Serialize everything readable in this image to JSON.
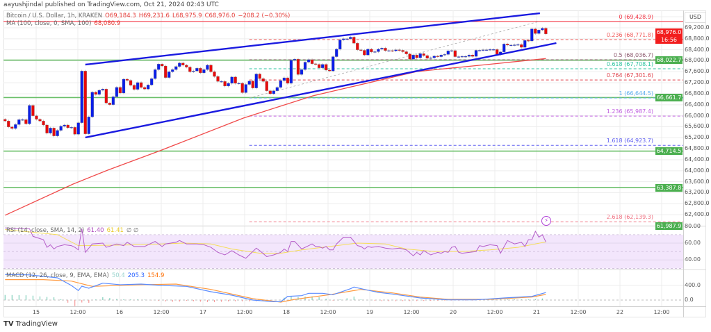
{
  "publisher_line": "aayushjindal published on TradingView.com, Oct 21, 2024 02:43 UTC",
  "legend": {
    "symbol": "Bitcoin / U.S. Dollar, 1h, KRAKEN",
    "open": "O69,184.3",
    "high": "H69,231.6",
    "low": "L68,975.9",
    "close": "C68,976.0",
    "change": "−208.2 (−0.30%)",
    "ma_label": "MA (100, close, 0, SMA, 100)",
    "ma_value": "68,080.9"
  },
  "rsi_legend": {
    "label": "RSI (14, close, SMA, 14, 2)",
    "rsi": "61.40",
    "sma": "61.41",
    "extra": "∅ ∅"
  },
  "macd_legend": {
    "label": "MACD (12, 26, close, 9, EMA, EMA)",
    "hist": "50.4",
    "macd": "205.3",
    "signal": "154.9"
  },
  "currency": "USD",
  "price_axis": [
    "69,200.0",
    "68,800.0",
    "68,400.0",
    "68,000.0",
    "67,600.0",
    "67,200.0",
    "66,800.0",
    "66,400.0",
    "66,000.0",
    "65,600.0",
    "65,200.0",
    "64,800.0",
    "64,400.0",
    "64,000.0",
    "63,600.0",
    "63,200.0",
    "62,800.0",
    "62,400.0"
  ],
  "rsi_axis": [
    "80.00",
    "60.00",
    "40.00"
  ],
  "macd_axis": [
    "400.0",
    "0.0"
  ],
  "time_axis": [
    "15",
    "12:00",
    "16",
    "12:00",
    "17",
    "12:00",
    "18",
    "12:00",
    "19",
    "12:00",
    "20",
    "12:00",
    "21",
    "12:00",
    "22",
    "12:00"
  ],
  "current_price": {
    "value": "68,976.0",
    "countdown": "16:56",
    "color": "#f21d1d"
  },
  "level_badges": [
    "68,022.7",
    "66,661.7",
    "64,714.5",
    "63,387.8",
    "61,987.9"
  ],
  "support_resistance_lines": [
    68022.7,
    66661.7,
    64714.5,
    63387.8
  ],
  "fib_levels": [
    {
      "label": "0 (69,428.9)",
      "price": 69428.9,
      "color": "#f23645"
    },
    {
      "label": "0.236 (68,771.8)",
      "price": 68771.8,
      "color": "#f05a5a"
    },
    {
      "label": "0.5 (68,036.7)",
      "price": 68036.7,
      "color": "#8d5a6e"
    },
    {
      "label": "0.618 (67,708.1)",
      "price": 67708.1,
      "color": "#2ec4a0"
    },
    {
      "label": "0.764 (67,301.6)",
      "price": 67301.6,
      "color": "#e0404a"
    },
    {
      "label": "1 (66,644.5)",
      "price": 66644.5,
      "color": "#5fb0f0"
    },
    {
      "label": "1.236 (65,987.4)",
      "price": 65987.4,
      "color": "#c060e0"
    },
    {
      "label": "1.618 (64,923.7)",
      "price": 64923.7,
      "color": "#6060f0"
    },
    {
      "label": "2.618 (62,139.3)",
      "price": 62139.3,
      "color": "#f07080"
    }
  ],
  "colors": {
    "up": "#0a1ee8",
    "down": "#e80a0a",
    "channel": "#1a1ae0",
    "ma": "#f04b4b",
    "level": "#6abf69",
    "rsi": "#b45cc8",
    "rsi_signal": "#f5dd5a",
    "macd": "#5b8cff",
    "signal": "#ff9a40",
    "hist_up": "#7ccdb8",
    "hist_down": "#f59a9a"
  },
  "chart_data": {
    "type": "candlestick",
    "timeframe": "1h",
    "closes": [
      65810,
      65595,
      65537,
      65681,
      65858,
      65858,
      65707,
      66378,
      66000,
      65873,
      65808,
      65664,
      65368,
      65555,
      65267,
      65469,
      65621,
      65664,
      65563,
      65580,
      65328,
      65747,
      67626,
      65343,
      65959,
      66858,
      66775,
      66927,
      66970,
      66464,
      66404,
      66692,
      67035,
      66826,
      67331,
      67288,
      67111,
      66960,
      67207,
      67030,
      66970,
      67120,
      67350,
      67680,
      67880,
      67810,
      67390,
      67600,
      67680,
      67790,
      67920,
      67840,
      67770,
      67600,
      67630,
      67730,
      67560,
      67680,
      67840,
      67600,
      67430,
      67250,
      67250,
      67080,
      67180,
      67410,
      67180,
      67180,
      66840,
      67140,
      67260,
      67010,
      67520,
      67350,
      67250,
      66910,
      66800,
      66910,
      67030,
      67280,
      67380,
      67180,
      68020,
      68060,
      67500,
      67680,
      67950,
      68040,
      67890,
      67870,
      67740,
      67870,
      67660,
      67630,
      68150,
      68420,
      68760,
      68800,
      68800,
      68860,
      68640,
      68400,
      68380,
      68210,
      68420,
      68320,
      68330,
      68420,
      68460,
      68370,
      68370,
      68360,
      68400,
      68380,
      68330,
      68250,
      68060,
      68210,
      68110,
      68260,
      68190,
      68090,
      68110,
      68170,
      68150,
      68210,
      68230,
      68360,
      68370,
      68150,
      68150,
      68160,
      68160,
      68210,
      68160,
      68380,
      68380,
      68400,
      68400,
      68410,
      68410,
      68230,
      68320,
      68610,
      68570,
      68570,
      68580,
      68590,
      68490,
      68740,
      68720,
      69160,
      68990,
      69120,
      69184.3,
      68976.0
    ],
    "ma100": [
      [
        0,
        62380
      ],
      [
        19.5,
        63516
      ],
      [
        29.4,
        64022
      ],
      [
        44.4,
        64729
      ],
      [
        68.3,
        65916
      ],
      [
        88.2,
        66725
      ],
      [
        118,
        67609
      ],
      [
        138,
        67861
      ],
      [
        155,
        68080.9
      ]
    ],
    "channel_upper": [
      [
        23,
        67861
      ],
      [
        153.3,
        69730
      ]
    ],
    "channel_lower": [
      [
        23,
        65209
      ],
      [
        158,
        68644
      ]
    ],
    "fib_anchor": [
      [
        70,
        66644.5
      ],
      [
        153,
        69428.9
      ]
    ],
    "rsi": [
      [
        0,
        78
      ],
      [
        7,
        77
      ],
      [
        8,
        68
      ],
      [
        11,
        64
      ],
      [
        12,
        55
      ],
      [
        13,
        58
      ],
      [
        14,
        53
      ],
      [
        15,
        56
      ],
      [
        17,
        58
      ],
      [
        19,
        57
      ],
      [
        20,
        55
      ],
      [
        21,
        52
      ],
      [
        22,
        77
      ],
      [
        23,
        49
      ],
      [
        25,
        59
      ],
      [
        28,
        60
      ],
      [
        29,
        55
      ],
      [
        32,
        59
      ],
      [
        34,
        57
      ],
      [
        35,
        61
      ],
      [
        37,
        56
      ],
      [
        40,
        56
      ],
      [
        43,
        62
      ],
      [
        45,
        56
      ],
      [
        46,
        59
      ],
      [
        49,
        61
      ],
      [
        50,
        63
      ],
      [
        52,
        59
      ],
      [
        55,
        59
      ],
      [
        57,
        58
      ],
      [
        59,
        55
      ],
      [
        61,
        49
      ],
      [
        63,
        46
      ],
      [
        65,
        51
      ],
      [
        67,
        46
      ],
      [
        69,
        42
      ],
      [
        70,
        46
      ],
      [
        72,
        54
      ],
      [
        73,
        51
      ],
      [
        75,
        44
      ],
      [
        77,
        46
      ],
      [
        79,
        49
      ],
      [
        80,
        53
      ],
      [
        81,
        50
      ],
      [
        82,
        62
      ],
      [
        83,
        62
      ],
      [
        85,
        53
      ],
      [
        87,
        57
      ],
      [
        88,
        59
      ],
      [
        89,
        56
      ],
      [
        90,
        56
      ],
      [
        91,
        54
      ],
      [
        92,
        56
      ],
      [
        93,
        52
      ],
      [
        94,
        52
      ],
      [
        95,
        59
      ],
      [
        97,
        67
      ],
      [
        99,
        67
      ],
      [
        101,
        57
      ],
      [
        102,
        56
      ],
      [
        103,
        53
      ],
      [
        104,
        56
      ],
      [
        105,
        55
      ],
      [
        107,
        56
      ],
      [
        109,
        54
      ],
      [
        111,
        53
      ],
      [
        113,
        54
      ],
      [
        115,
        52
      ],
      [
        117,
        45
      ],
      [
        118,
        49
      ],
      [
        119,
        46
      ],
      [
        120,
        51
      ],
      [
        122,
        46
      ],
      [
        124,
        49
      ],
      [
        125,
        48
      ],
      [
        126,
        50
      ],
      [
        127,
        49
      ],
      [
        128,
        55
      ],
      [
        129,
        56
      ],
      [
        130,
        49
      ],
      [
        131,
        48
      ],
      [
        133,
        49
      ],
      [
        135,
        50
      ],
      [
        136,
        57
      ],
      [
        137,
        56
      ],
      [
        139,
        58
      ],
      [
        141,
        57
      ],
      [
        142,
        48
      ],
      [
        144,
        63
      ],
      [
        146,
        59
      ],
      [
        148,
        61
      ],
      [
        149,
        56
      ],
      [
        150,
        64
      ],
      [
        151,
        64
      ],
      [
        152,
        74
      ],
      [
        153,
        67
      ],
      [
        154,
        70
      ],
      [
        155,
        61.4
      ]
    ],
    "rsi_sma": [
      [
        0,
        76
      ],
      [
        15,
        70
      ],
      [
        21,
        57
      ],
      [
        39,
        58
      ],
      [
        51,
        60
      ],
      [
        59,
        59
      ],
      [
        65,
        53
      ],
      [
        73,
        48
      ],
      [
        79,
        48
      ],
      [
        85,
        52
      ],
      [
        93,
        56
      ],
      [
        101,
        60
      ],
      [
        109,
        59
      ],
      [
        115,
        53
      ],
      [
        123,
        50
      ],
      [
        131,
        50
      ],
      [
        139,
        52
      ],
      [
        147,
        55
      ],
      [
        155,
        61.41
      ]
    ],
    "rsi_range": [
      0,
      100
    ],
    "rsi_band": [
      30,
      70
    ],
    "macd": [
      [
        0,
        700
      ],
      [
        7,
        690
      ],
      [
        15,
        610
      ],
      [
        19,
        400
      ],
      [
        21,
        260
      ],
      [
        22,
        380
      ],
      [
        24,
        324
      ],
      [
        28,
        463
      ],
      [
        33,
        420
      ],
      [
        39,
        438
      ],
      [
        45,
        400
      ],
      [
        52,
        375
      ],
      [
        59,
        229
      ],
      [
        65,
        133
      ],
      [
        71,
        0
      ],
      [
        77,
        -45
      ],
      [
        79,
        -45
      ],
      [
        81,
        100
      ],
      [
        85,
        120
      ],
      [
        87,
        185
      ],
      [
        91,
        185
      ],
      [
        94,
        147
      ],
      [
        99,
        310
      ],
      [
        100,
        356
      ],
      [
        103,
        292
      ],
      [
        107,
        210
      ],
      [
        111,
        165
      ],
      [
        119,
        57
      ],
      [
        127,
        6
      ],
      [
        135,
        6
      ],
      [
        143,
        57
      ],
      [
        151,
        100
      ],
      [
        155,
        205.3
      ]
    ],
    "macd_signal": [
      [
        0,
        560
      ],
      [
        11,
        560
      ],
      [
        19,
        520
      ],
      [
        25,
        375
      ],
      [
        39,
        420
      ],
      [
        49,
        438
      ],
      [
        59,
        292
      ],
      [
        71,
        38
      ],
      [
        79,
        -57
      ],
      [
        83,
        19
      ],
      [
        93,
        147
      ],
      [
        102,
        292
      ],
      [
        111,
        196
      ],
      [
        119,
        82
      ],
      [
        127,
        19
      ],
      [
        139,
        19
      ],
      [
        151,
        82
      ],
      [
        155,
        154.9
      ]
    ]
  }
}
